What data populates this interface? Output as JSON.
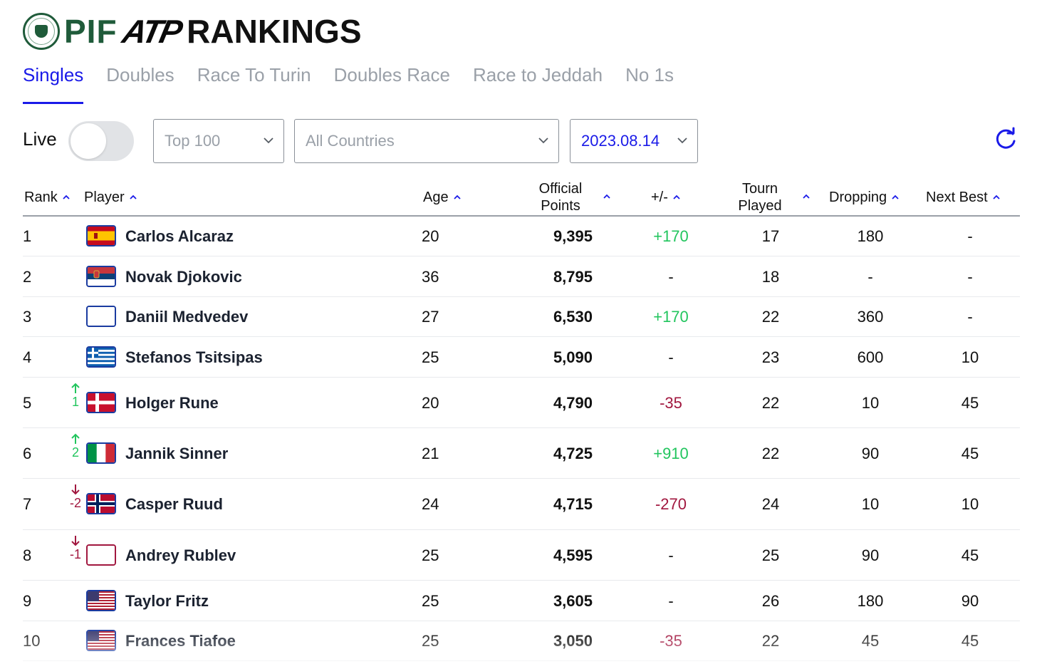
{
  "header": {
    "brand_pif": "PIF",
    "brand_atp": "ATP",
    "brand_rankings": "RANKINGS"
  },
  "tabs": [
    {
      "label": "Singles",
      "active": true
    },
    {
      "label": "Doubles",
      "active": false
    },
    {
      "label": "Race To Turin",
      "active": false
    },
    {
      "label": "Doubles Race",
      "active": false
    },
    {
      "label": "Race to Jeddah",
      "active": false
    },
    {
      "label": "No 1s",
      "active": false
    }
  ],
  "filters": {
    "live_label": "Live",
    "live_on": false,
    "top_select": "Top 100",
    "country_select": "All Countries",
    "date_select": "2023.08.14"
  },
  "columns": {
    "rank": "Rank",
    "player": "Player",
    "age": "Age",
    "points_line1": "Official",
    "points_line2": "Points",
    "diff": "+/-",
    "tourn_line1": "Tourn",
    "tourn_line2": "Played",
    "dropping": "Dropping",
    "next_best": "Next Best"
  },
  "colors": {
    "accent": "#1a1ae8",
    "positive": "#22c55e",
    "negative": "#a1173f",
    "brand_green": "#1f5b3a"
  },
  "rows": [
    {
      "rank": "1",
      "move_dir": "",
      "move": "",
      "flag": "spain-flag",
      "name": "Carlos Alcaraz",
      "age": "20",
      "points": "9,395",
      "diff": "+170",
      "diff_type": "pos",
      "tourn": "17",
      "dropping": "180",
      "next_best": "-"
    },
    {
      "rank": "2",
      "move_dir": "",
      "move": "",
      "flag": "serbia-flag",
      "name": "Novak Djokovic",
      "age": "36",
      "points": "8,795",
      "diff": "-",
      "diff_type": "none",
      "tourn": "18",
      "dropping": "-",
      "next_best": "-"
    },
    {
      "rank": "3",
      "move_dir": "",
      "move": "",
      "flag": "blank-flag",
      "name": "Daniil Medvedev",
      "age": "27",
      "points": "6,530",
      "diff": "+170",
      "diff_type": "pos",
      "tourn": "22",
      "dropping": "360",
      "next_best": "-"
    },
    {
      "rank": "4",
      "move_dir": "",
      "move": "",
      "flag": "greece-flag",
      "name": "Stefanos Tsitsipas",
      "age": "25",
      "points": "5,090",
      "diff": "-",
      "diff_type": "none",
      "tourn": "23",
      "dropping": "600",
      "next_best": "10"
    },
    {
      "rank": "5",
      "move_dir": "up",
      "move": "1",
      "flag": "denmark-flag",
      "name": "Holger Rune",
      "age": "20",
      "points": "4,790",
      "diff": "-35",
      "diff_type": "neg",
      "tourn": "22",
      "dropping": "10",
      "next_best": "45"
    },
    {
      "rank": "6",
      "move_dir": "up",
      "move": "2",
      "flag": "italy-flag",
      "name": "Jannik Sinner",
      "age": "21",
      "points": "4,725",
      "diff": "+910",
      "diff_type": "pos",
      "tourn": "22",
      "dropping": "90",
      "next_best": "45"
    },
    {
      "rank": "7",
      "move_dir": "down",
      "move": "-2",
      "flag": "norway-flag",
      "name": "Casper Ruud",
      "age": "24",
      "points": "4,715",
      "diff": "-270",
      "diff_type": "neg",
      "tourn": "24",
      "dropping": "10",
      "next_best": "10"
    },
    {
      "rank": "8",
      "move_dir": "down",
      "move": "-1",
      "flag": "blank-flag",
      "name": "Andrey Rublev",
      "age": "25",
      "points": "4,595",
      "diff": "-",
      "diff_type": "none",
      "tourn": "25",
      "dropping": "90",
      "next_best": "45"
    },
    {
      "rank": "9",
      "move_dir": "",
      "move": "",
      "flag": "usa-flag",
      "name": "Taylor Fritz",
      "age": "25",
      "points": "3,605",
      "diff": "-",
      "diff_type": "none",
      "tourn": "26",
      "dropping": "180",
      "next_best": "90"
    },
    {
      "rank": "10",
      "move_dir": "",
      "move": "",
      "flag": "usa-flag",
      "name": "Frances Tiafoe",
      "age": "25",
      "points": "3,050",
      "diff": "-35",
      "diff_type": "neg",
      "tourn": "22",
      "dropping": "45",
      "next_best": "45"
    }
  ]
}
